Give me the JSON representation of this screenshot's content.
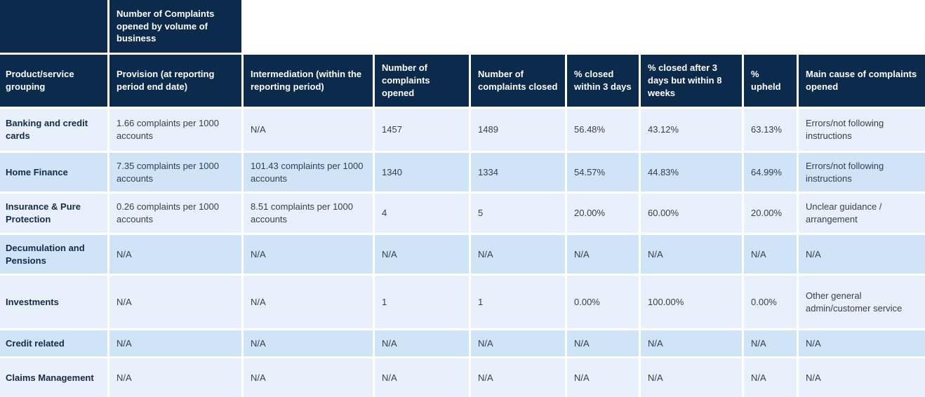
{
  "chart_data": {
    "type": "table",
    "group_header": "Number of Complaints opened by volume of business",
    "columns": [
      "Product/service grouping",
      "Provision (at reporting period end date)",
      "Intermediation (within the reporting period)",
      "Number of complaints opened",
      "Number of complaints closed",
      "% closed within 3 days",
      "% closed after 3 days but within 8 weeks",
      "% upheld",
      "Main cause of complaints opened"
    ],
    "rows": [
      [
        "Banking and credit cards",
        "1.66 complaints per 1000 accounts",
        "N/A",
        "1457",
        "1489",
        "56.48%",
        "43.12%",
        "63.13%",
        "Errors/not following instructions"
      ],
      [
        "Home Finance",
        "7.35 complaints per 1000 accounts",
        "101.43 complaints per 1000 accounts",
        "1340",
        "1334",
        "54.57%",
        "44.83%",
        "64.99%",
        "Errors/not following instructions"
      ],
      [
        "Insurance & Pure Protection",
        "0.26 complaints per 1000 accounts",
        "8.51 complaints per 1000 accounts",
        "4",
        "5",
        "20.00%",
        "60.00%",
        "20.00%",
        "Unclear guidance / arrangement"
      ],
      [
        "Decumulation and Pensions",
        "N/A",
        "N/A",
        "N/A",
        "N/A",
        "N/A",
        "N/A",
        "N/A",
        "N/A"
      ],
      [
        "Investments",
        "N/A",
        "N/A",
        "1",
        "1",
        "0.00%",
        "100.00%",
        "0.00%",
        "Other general admin/customer service"
      ],
      [
        "Credit related",
        "N/A",
        "N/A",
        "N/A",
        "N/A",
        "N/A",
        "N/A",
        "N/A",
        "N/A"
      ],
      [
        "Claims Management",
        "N/A",
        "N/A",
        "N/A",
        "N/A",
        "N/A",
        "N/A",
        "N/A",
        "N/A"
      ]
    ],
    "layout": {
      "row_striping": [
        "light",
        "dark"
      ],
      "legend_position": "none",
      "grid": "white-gaps"
    }
  },
  "colors": {
    "header_bg": "#0C2A4C",
    "header_text": "#FFFFFF",
    "row_light_bg": "#E8F1FB",
    "row_dark_bg": "#CFE4F7",
    "body_text": "#33414E",
    "row_label_text": "#14294B",
    "gap": "#FFFFFF"
  }
}
